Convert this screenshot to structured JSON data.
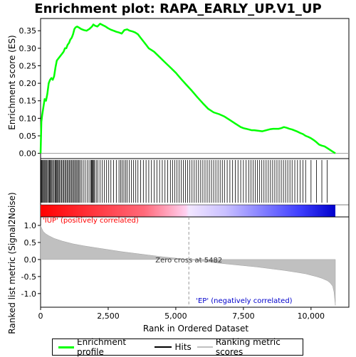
{
  "chart_data": {
    "type": "line",
    "title": "Enrichment plot: RAPA_EARLY_UP.V1_UP",
    "top_panel": {
      "ylabel": "Enrichment score (ES)",
      "ylim": [
        -0.015,
        0.385
      ],
      "yticks": [
        0.0,
        0.05,
        0.1,
        0.15,
        0.2,
        0.25,
        0.3,
        0.35
      ],
      "ytick_labels": [
        "0.00",
        "0.05",
        "0.10",
        "0.15",
        "0.20",
        "0.25",
        "0.30",
        "0.35"
      ],
      "series": [
        {
          "name": "Enrichment profile",
          "color": "#00ff00",
          "x": [
            0,
            30,
            60,
            100,
            150,
            200,
            250,
            300,
            350,
            400,
            450,
            500,
            550,
            600,
            650,
            700,
            750,
            800,
            850,
            900,
            950,
            1000,
            1050,
            1100,
            1150,
            1200,
            1250,
            1300,
            1350,
            1400,
            1500,
            1600,
            1700,
            1800,
            1900,
            1950,
            2000,
            2100,
            2200,
            2300,
            2400,
            2500,
            2600,
            2700,
            2800,
            2900,
            3000,
            3100,
            3200,
            3300,
            3400,
            3500,
            3600,
            3700,
            3800,
            3900,
            4000,
            4100,
            4200,
            4400,
            4600,
            4800,
            5000,
            5200,
            5400,
            5600,
            5800,
            6000,
            6200,
            6400,
            6600,
            6800,
            7000,
            7200,
            7400,
            7500,
            7600,
            7700,
            7800,
            7900,
            8000,
            8100,
            8200,
            8300,
            8400,
            8500,
            8600,
            8700,
            8800,
            8900,
            9000,
            9100,
            9200,
            9300,
            9400,
            9500,
            9600,
            9700,
            9800,
            9900,
            10000,
            10100,
            10200,
            10300,
            10400,
            10500,
            10600,
            10700,
            10800,
            10900
          ],
          "values": [
            0.0,
            0.09,
            0.11,
            0.13,
            0.155,
            0.15,
            0.17,
            0.2,
            0.21,
            0.215,
            0.21,
            0.22,
            0.245,
            0.265,
            0.27,
            0.275,
            0.28,
            0.285,
            0.29,
            0.3,
            0.3,
            0.31,
            0.315,
            0.325,
            0.33,
            0.34,
            0.355,
            0.36,
            0.362,
            0.36,
            0.355,
            0.352,
            0.35,
            0.355,
            0.362,
            0.368,
            0.365,
            0.362,
            0.37,
            0.366,
            0.362,
            0.357,
            0.353,
            0.35,
            0.347,
            0.345,
            0.342,
            0.352,
            0.354,
            0.35,
            0.348,
            0.345,
            0.34,
            0.33,
            0.32,
            0.31,
            0.3,
            0.295,
            0.29,
            0.275,
            0.26,
            0.245,
            0.23,
            0.212,
            0.195,
            0.178,
            0.16,
            0.143,
            0.127,
            0.117,
            0.112,
            0.105,
            0.095,
            0.085,
            0.075,
            0.072,
            0.07,
            0.068,
            0.066,
            0.066,
            0.065,
            0.064,
            0.063,
            0.065,
            0.067,
            0.069,
            0.07,
            0.07,
            0.07,
            0.072,
            0.075,
            0.073,
            0.07,
            0.068,
            0.065,
            0.062,
            0.058,
            0.055,
            0.05,
            0.047,
            0.043,
            0.038,
            0.032,
            0.025,
            0.022,
            0.02,
            0.015,
            0.01,
            0.005,
            0.0
          ]
        }
      ]
    },
    "hits_panel": {
      "legend": "Hits",
      "positions": [
        15,
        40,
        70,
        100,
        130,
        160,
        190,
        230,
        260,
        300,
        330,
        360,
        390,
        420,
        460,
        500,
        540,
        570,
        600,
        630,
        660,
        700,
        740,
        780,
        820,
        860,
        900,
        940,
        980,
        1020,
        1060,
        1100,
        1140,
        1180,
        1220,
        1260,
        1300,
        1340,
        1380,
        1420,
        1460,
        1520,
        1580,
        1650,
        1720,
        1790,
        1850,
        1880,
        1910,
        1940,
        1970,
        2000,
        2060,
        2120,
        2200,
        2280,
        2360,
        2440,
        2520,
        2600,
        2700,
        2800,
        2900,
        2960,
        3020,
        3080,
        3140,
        3200,
        3280,
        3360,
        3440,
        3520,
        3600,
        3700,
        3800,
        3900,
        4000,
        4100,
        4200,
        4300,
        4400,
        4500,
        4600,
        4700,
        4800,
        4880,
        4960,
        5040,
        5120,
        5200,
        5280,
        5360,
        5440,
        5520,
        5600,
        5680,
        5760,
        5840,
        5920,
        6000,
        6080,
        6160,
        6240,
        6320,
        6400,
        6480,
        6560,
        6640,
        6720,
        6800,
        6900,
        7000,
        7100,
        7200,
        7300,
        7400,
        7500,
        7600,
        7700,
        7780,
        7860,
        7940,
        8020,
        8100,
        8180,
        8260,
        8340,
        8420,
        8500,
        8580,
        8660,
        8740,
        8820,
        8900,
        8980,
        9060,
        9140,
        9220,
        9300,
        9400,
        9500,
        9600,
        9700,
        9800,
        10000,
        10200,
        10400,
        10600
      ]
    },
    "bottom_panel": {
      "ylabel": "Ranked list metric (Signal2Noise)",
      "ylim": [
        -1.4,
        1.25
      ],
      "yticks": [
        1.0,
        0.5,
        0.0,
        -0.5,
        -1.0
      ],
      "ytick_labels": [
        "1.0",
        "0.5",
        "0.0",
        "-0.5",
        "-1.0"
      ],
      "metric_x": [
        0,
        50,
        100,
        200,
        300,
        500,
        800,
        1200,
        1600,
        2000,
        2500,
        3000,
        3500,
        4000,
        4500,
        5000,
        5482,
        6000,
        6500,
        7000,
        7500,
        8000,
        8500,
        9000,
        9500,
        9800,
        10000,
        10200,
        10400,
        10600,
        10700,
        10800,
        10850,
        10900
      ],
      "metric_values": [
        1.0,
        0.9,
        0.82,
        0.75,
        0.7,
        0.62,
        0.54,
        0.46,
        0.4,
        0.35,
        0.29,
        0.23,
        0.18,
        0.13,
        0.08,
        0.04,
        0.0,
        -0.05,
        -0.1,
        -0.14,
        -0.18,
        -0.22,
        -0.27,
        -0.32,
        -0.38,
        -0.42,
        -0.46,
        -0.5,
        -0.55,
        -0.62,
        -0.68,
        -0.78,
        -0.95,
        -1.35
      ],
      "zero_cross_label": "Zero cross at 5482",
      "zero_cross": 5482,
      "positive_label": "'IUP' (positively correlated)",
      "negative_label": "'EP' (negatively correlated)",
      "positive_color": "#ff0000",
      "negative_color": "#0000cc"
    },
    "xlabel": "Rank in Ordered Dataset",
    "xlim": [
      0,
      11400
    ],
    "xticks": [
      0,
      2500,
      5000,
      7500,
      10000
    ],
    "xtick_labels": [
      "0",
      "2,500",
      "5,000",
      "7,500",
      "10,000"
    ],
    "dataset_size": 10900
  },
  "legend": {
    "items": [
      {
        "label": "Enrichment profile",
        "color": "#00ff00"
      },
      {
        "label": "Hits",
        "color": "#000000"
      },
      {
        "label": "Ranking metric scores",
        "color": "#c0c0c0"
      }
    ]
  }
}
